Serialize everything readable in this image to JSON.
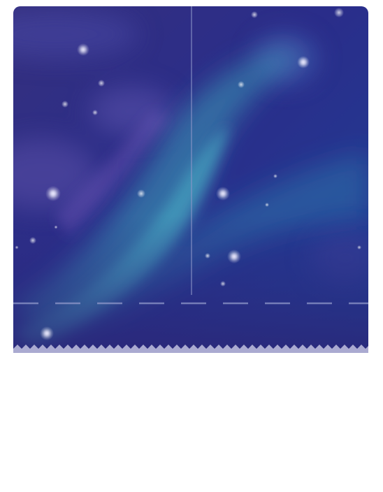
{
  "artwork": {
    "subject": "aurora-night-sky",
    "colors": {
      "sky_top": "#1f237f",
      "sky_mid": "#2c2e86",
      "sky_right": "#1d3f96",
      "aurora_glow": "#3aa0b8",
      "aurora_core": "#4dc6cf",
      "cloud": "#5a4fa8",
      "divider": "#8f97c9",
      "edge": "#a9a9d0"
    }
  }
}
